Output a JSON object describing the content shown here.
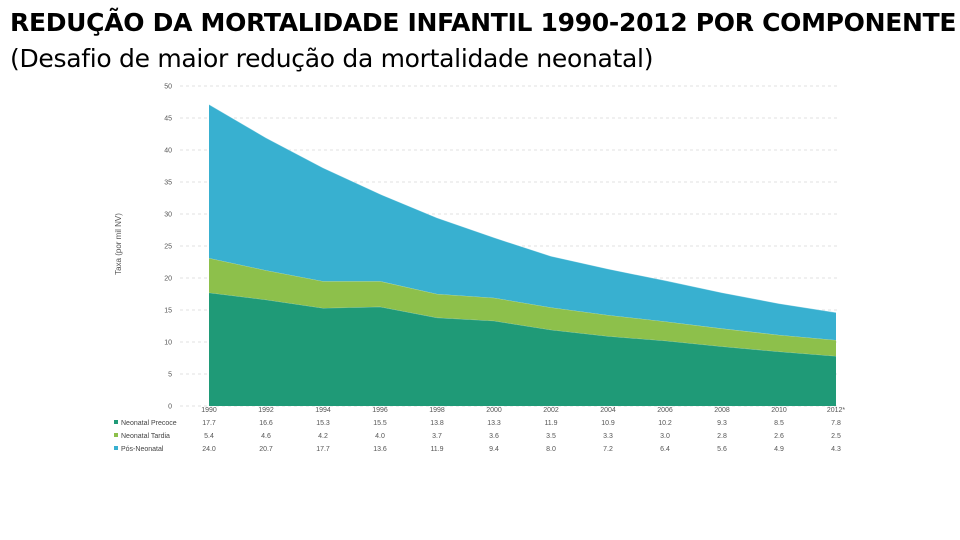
{
  "header": {
    "title": "REDUÇÃO DA MORTALIDADE INFANTIL 1990-2012 POR COMPONENTE",
    "subtitle": "(Desafio de maior redução da mortalidade neonatal)"
  },
  "chart_data": {
    "type": "area",
    "stacked": true,
    "ylabel": "Taxa (por mil NV)",
    "ylim": [
      0,
      50
    ],
    "yticks": [
      0,
      5,
      10,
      15,
      20,
      25,
      30,
      35,
      40,
      45,
      50
    ],
    "grid": true,
    "legend_position": "bottom-left",
    "categories": [
      "1990",
      "1992",
      "1994",
      "1996",
      "1998",
      "2000",
      "2002",
      "2004",
      "2006",
      "2008",
      "2010",
      "2012*"
    ],
    "series": [
      {
        "name": "Neonatal Precoce",
        "color": "#1f9a77",
        "values": [
          17.7,
          16.6,
          15.3,
          15.5,
          13.8,
          13.3,
          11.9,
          10.9,
          10.2,
          9.3,
          8.5,
          7.8
        ],
        "labels": [
          "17.7",
          "16.6",
          "15.3",
          "15.5",
          "13.8",
          "13.3",
          "11.9",
          "10.9",
          "10.2",
          "9.3",
          "8.5",
          "7.8"
        ]
      },
      {
        "name": "Neonatal Tardia",
        "color": "#8dc04b",
        "values": [
          5.4,
          4.6,
          4.2,
          4.0,
          3.7,
          3.6,
          3.5,
          3.3,
          3.0,
          2.8,
          2.6,
          2.5
        ],
        "labels": [
          "5.4",
          "4.6",
          "4.2",
          "4.0",
          "3.7",
          "3.6",
          "3.5",
          "3.3",
          "3.0",
          "2.8",
          "2.6",
          "2.5"
        ]
      },
      {
        "name": "Pós-Neonatal",
        "color": "#38b0d0",
        "values": [
          24.0,
          20.7,
          17.7,
          13.6,
          11.9,
          9.4,
          8.0,
          7.2,
          6.4,
          5.6,
          4.9,
          4.3
        ],
        "labels": [
          "24.0",
          "20.7",
          "17.7",
          "13.6",
          "11.9",
          "9.4",
          "8.0",
          "7.2",
          "6.4",
          "5.6",
          "4.9",
          "4.3"
        ]
      }
    ]
  }
}
